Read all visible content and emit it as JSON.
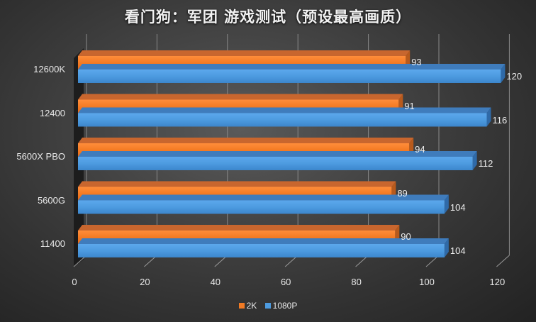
{
  "title": "看门狗：军团 游戏测试（预设最高画质）",
  "colors": {
    "2K": "#f07a24",
    "1080P": "#4d9be0",
    "background": "#3a3a3a"
  },
  "legend": [
    {
      "label": "2K",
      "color": "#f07a24"
    },
    {
      "label": "1080P",
      "color": "#4d9be0"
    }
  ],
  "x_ticks": [
    "0",
    "20",
    "40",
    "60",
    "80",
    "100",
    "120"
  ],
  "categories": [
    "12600K",
    "12400",
    "5600X PBO",
    "5600G",
    "11400"
  ],
  "chart_data": {
    "type": "bar",
    "orientation": "horizontal",
    "style": "3d-clustered",
    "title": "看门狗：军团 游戏测试（预设最高画质）",
    "categories": [
      "12600K",
      "12400",
      "5600X PBO",
      "5600G",
      "11400"
    ],
    "series": [
      {
        "name": "2K",
        "color": "#f07a24",
        "values": [
          93,
          91,
          94,
          89,
          90
        ]
      },
      {
        "name": "1080P",
        "color": "#4d9be0",
        "values": [
          120,
          116,
          112,
          104,
          104
        ]
      }
    ],
    "xlabel": "",
    "ylabel": "",
    "xlim": [
      0,
      120
    ],
    "x_ticks": [
      0,
      20,
      40,
      60,
      80,
      100,
      120
    ],
    "grid": true,
    "legend_position": "bottom",
    "data_labels": true
  }
}
